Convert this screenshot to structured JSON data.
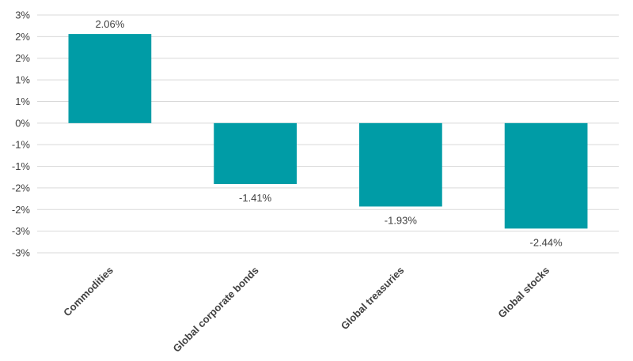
{
  "chart_data": {
    "type": "bar",
    "categories": [
      "Commodities",
      "Global corporate bonds",
      "Global treasuries",
      "Global stocks"
    ],
    "values": [
      2.06,
      -1.41,
      -1.93,
      -2.44
    ],
    "data_labels": [
      "2.06%",
      "-1.41%",
      "-1.93%",
      "-2.44%"
    ],
    "ylim": [
      -3.0,
      2.5
    ],
    "y_ticks": [
      2.5,
      2.0,
      1.5,
      1.0,
      0.5,
      0.0,
      -0.5,
      -1.0,
      -1.5,
      -2.0,
      -2.5,
      -3.0
    ],
    "y_tick_labels": [
      "3%",
      "2%",
      "2%",
      "1%",
      "1%",
      "0%",
      "-1%",
      "-1%",
      "-2%",
      "-2%",
      "-3%",
      "-3%"
    ],
    "grid": true,
    "bar_color": "#009ca6",
    "title": "",
    "xlabel": "",
    "ylabel": ""
  }
}
